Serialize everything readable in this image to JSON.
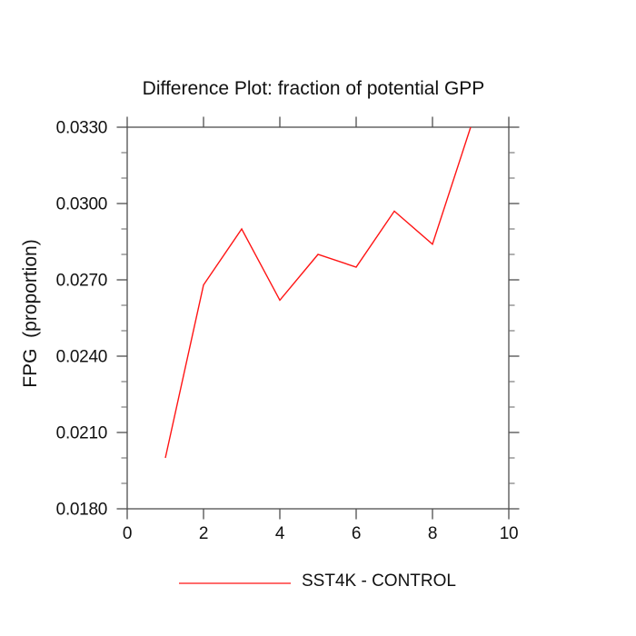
{
  "chart": {
    "title": "Difference Plot: fraction of potential GPP",
    "y_axis_title": "FPG  (proportion)",
    "legend": {
      "label": "SST4K - CONTROL"
    }
  },
  "colors": {
    "background": "#ffffff",
    "axis": "#4d4d4d",
    "minor_tick": "#6e6e6e",
    "text": "#111111",
    "series_line": "#ff1414",
    "legend_swatch": "#ff6b6b"
  },
  "chart_data": {
    "type": "line",
    "title": "Difference Plot: fraction of potential GPP",
    "xlabel": "",
    "ylabel": "FPG (proportion)",
    "x": [
      1,
      2,
      3,
      4,
      5,
      6,
      7,
      8,
      9
    ],
    "series": [
      {
        "name": "SST4K - CONTROL",
        "color": "#ff1414",
        "values": [
          0.02,
          0.0268,
          0.029,
          0.0262,
          0.028,
          0.0275,
          0.0297,
          0.0284,
          0.033
        ]
      }
    ],
    "xlim": [
      0,
      10
    ],
    "ylim": [
      0.018,
      0.033
    ],
    "xticks": [
      0,
      2,
      4,
      6,
      8,
      10
    ],
    "xtick_labels": [
      "0",
      "2",
      "4",
      "6",
      "8",
      "10"
    ],
    "yticks": [
      0.018,
      0.021,
      0.024,
      0.027,
      0.03,
      0.033
    ],
    "ytick_labels": [
      "0.0180",
      "0.0210",
      "0.0240",
      "0.0270",
      "0.0300",
      "0.0330"
    ],
    "y_minor_step": 0.001,
    "x_minor_step": null,
    "grid": false,
    "tick_style": "outward-mirrored-all-sides",
    "legend_position": "bottom-center"
  }
}
